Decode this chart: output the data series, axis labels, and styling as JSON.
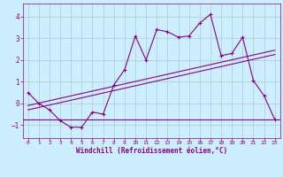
{
  "xlabel": "Windchill (Refroidissement éolien,°C)",
  "background_color": "#cceeff",
  "grid_color": "#aacccc",
  "line_color": "#880088",
  "xlim": [
    -0.5,
    23.5
  ],
  "ylim": [
    -1.6,
    4.6
  ],
  "xticks": [
    0,
    1,
    2,
    3,
    4,
    5,
    6,
    7,
    8,
    9,
    10,
    11,
    12,
    13,
    14,
    15,
    16,
    17,
    18,
    19,
    20,
    21,
    22,
    23
  ],
  "yticks": [
    -1,
    0,
    1,
    2,
    3,
    4
  ],
  "series1_x": [
    0,
    1,
    2,
    3,
    4,
    5,
    6,
    7,
    8,
    9,
    10,
    11,
    12,
    13,
    14,
    15,
    16,
    17,
    18,
    19,
    20,
    21,
    22,
    23
  ],
  "series1_y": [
    0.5,
    0.0,
    -0.3,
    -0.8,
    -1.1,
    -1.1,
    -0.4,
    -0.5,
    0.85,
    1.55,
    3.1,
    2.0,
    3.4,
    3.3,
    3.05,
    3.1,
    3.7,
    4.1,
    2.2,
    2.3,
    3.05,
    1.05,
    0.35,
    -0.75
  ],
  "series2_y": -0.75,
  "regline1_x": [
    0,
    23
  ],
  "regline1_y": [
    -0.1,
    2.45
  ],
  "regline2_x": [
    0,
    23
  ],
  "regline2_y": [
    -0.3,
    2.25
  ]
}
